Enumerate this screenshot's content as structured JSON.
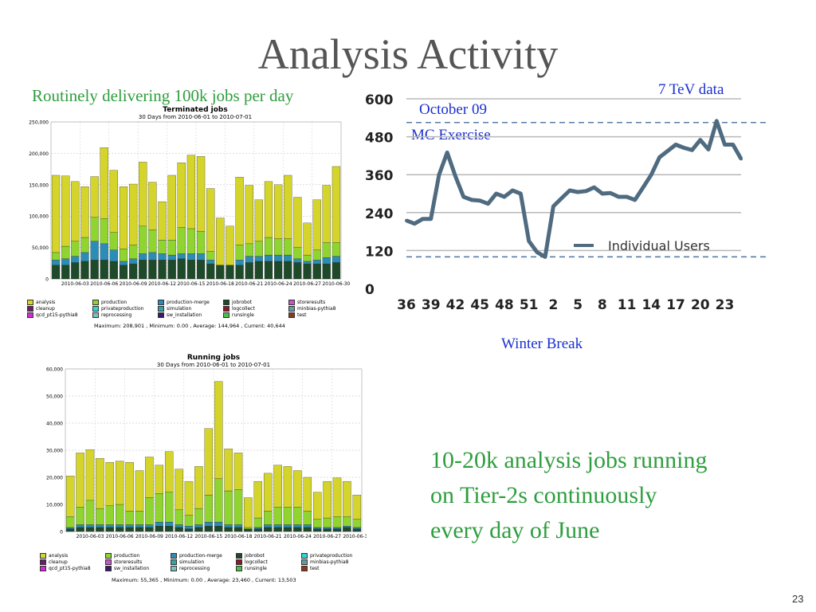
{
  "slide": {
    "title": "Analysis Activity",
    "subtitle_left": "Routinely delivering 100k jobs per day",
    "annotation_tev": "7 TeV data",
    "annotation_october": "October 09",
    "annotation_mc": "MC Exercise",
    "annotation_winter": "Winter Break",
    "callout_lines": [
      "10-20k analysis jobs running",
      "on Tier-2s continuously",
      "every day of June"
    ],
    "slide_number": "23"
  },
  "colors": {
    "title": "#555555",
    "green_text": "#2e9e3e",
    "blue_text": "#1a2fd0",
    "line_series": "#4f6b80"
  },
  "chart_data": [
    {
      "type": "bar",
      "stacked": true,
      "title": "Terminated jobs",
      "subtitle": "30 Days from 2010-06-01 to 2010-07-01",
      "ylim": [
        0,
        250000
      ],
      "yticks": [
        "0",
        "50,000",
        "100,000",
        "150,000",
        "200,000",
        "250,000"
      ],
      "ytick_values": [
        0,
        50000,
        100000,
        150000,
        200000,
        250000
      ],
      "xtick_labels": [
        "2010-06-03",
        "2010-06-06",
        "2010-06-09",
        "2010-06-12",
        "2010-06-15",
        "2010-06-18",
        "2010-06-21",
        "2010-06-24",
        "2010-06-27",
        "2010-06-30"
      ],
      "grid": true,
      "totals": [
        165000,
        164000,
        155000,
        147000,
        163000,
        209000,
        173000,
        147000,
        151000,
        186000,
        154000,
        123000,
        165000,
        185000,
        197000,
        195000,
        144000,
        97000,
        84000,
        162000,
        149000,
        126000,
        155000,
        150000,
        165000,
        130000,
        89000,
        126000,
        149000,
        179000
      ],
      "series": [
        {
          "name": "jobrobot",
          "color": "#1e4a2a",
          "values": [
            22000,
            22000,
            26000,
            28000,
            30000,
            30000,
            28000,
            22000,
            24000,
            30000,
            30000,
            30000,
            30000,
            32000,
            30000,
            30000,
            24000,
            22000,
            22000,
            22000,
            26000,
            28000,
            28000,
            28000,
            28000,
            26000,
            24000,
            24000,
            24000,
            26000
          ]
        },
        {
          "name": "production-merge",
          "color": "#2b8db5",
          "values": [
            8000,
            10000,
            10000,
            14000,
            30000,
            26000,
            18000,
            6000,
            8000,
            10000,
            12000,
            10000,
            8000,
            8000,
            10000,
            10000,
            6000,
            0,
            0,
            8000,
            10000,
            8000,
            10000,
            10000,
            10000,
            6000,
            4000,
            6000,
            10000,
            10000
          ]
        },
        {
          "name": "production",
          "color": "#8fd42f",
          "values": [
            12000,
            20000,
            24000,
            24000,
            38000,
            40000,
            28000,
            20000,
            22000,
            44000,
            36000,
            22000,
            24000,
            42000,
            40000,
            36000,
            14000,
            0,
            0,
            24000,
            20000,
            24000,
            28000,
            26000,
            26000,
            18000,
            10000,
            16000,
            24000,
            22000
          ]
        },
        {
          "name": "analysis",
          "color": "#d4d42a",
          "values": [
            123000,
            112000,
            95000,
            81000,
            65000,
            113000,
            99000,
            99000,
            97000,
            102000,
            76000,
            61000,
            103000,
            103000,
            117000,
            119000,
            100000,
            75000,
            62000,
            108000,
            93000,
            66000,
            89000,
            86000,
            101000,
            80000,
            51000,
            80000,
            91000,
            121000
          ]
        }
      ],
      "legend": [
        {
          "name": "analysis",
          "color": "#d4d42a"
        },
        {
          "name": "production",
          "color": "#8fd42f"
        },
        {
          "name": "production-merge",
          "color": "#2b8db5"
        },
        {
          "name": "jobrobot",
          "color": "#1e4a2a"
        },
        {
          "name": "storeresults",
          "color": "#c05ac0"
        },
        {
          "name": "cleanup",
          "color": "#6a1f6a"
        },
        {
          "name": "privateproduction",
          "color": "#2fd4d4"
        },
        {
          "name": "simulation",
          "color": "#3aa0a0"
        },
        {
          "name": "logcollect",
          "color": "#8a1a2a"
        },
        {
          "name": "minbias-pythia8",
          "color": "#6a9a9a"
        },
        {
          "name": "qcd_pt15-pythia8",
          "color": "#d42ad4"
        },
        {
          "name": "reprocessing",
          "color": "#7ac0c0"
        },
        {
          "name": "sw_installation",
          "color": "#3a1a6a"
        },
        {
          "name": "runsingle",
          "color": "#4ac04a"
        },
        {
          "name": "test",
          "color": "#8a3a1a"
        }
      ],
      "stats": "Maximum: 208,901 , Minimum: 0.00 , Average: 144,964 , Current: 40,644"
    },
    {
      "type": "line",
      "series": [
        {
          "name": "Individual Users",
          "values": [
            215,
            205,
            220,
            220,
            360,
            430,
            355,
            290,
            280,
            278,
            268,
            300,
            290,
            310,
            300,
            150,
            115,
            100,
            260,
            285,
            310,
            305,
            308,
            320,
            300,
            302,
            290,
            290,
            280,
            320,
            360,
            415,
            435,
            455,
            445,
            438,
            470,
            440,
            530,
            455,
            455,
            410
          ]
        }
      ],
      "xtick_labels": [
        "36",
        "39",
        "42",
        "45",
        "48",
        "51",
        "2",
        "5",
        "8",
        "11",
        "14",
        "17",
        "20",
        "23"
      ],
      "ylim": [
        0,
        600
      ],
      "yticks": [
        "0",
        "120",
        "240",
        "360",
        "480",
        "600"
      ],
      "ytick_values": [
        0,
        120,
        240,
        360,
        480,
        600
      ],
      "grid": true,
      "reference_lines": [
        {
          "value": 525,
          "style": "dashed"
        },
        {
          "value": 100,
          "style": "dashed"
        }
      ],
      "legend_label": "Individual Users"
    },
    {
      "type": "bar",
      "stacked": true,
      "title": "Running jobs",
      "subtitle": "30 Days from 2010-06-01 to 2010-07-01",
      "ylim": [
        0,
        60000
      ],
      "yticks": [
        "0",
        "10,000",
        "20,000",
        "30,000",
        "40,000",
        "50,000",
        "60,000"
      ],
      "ytick_values": [
        0,
        10000,
        20000,
        30000,
        40000,
        50000,
        60000
      ],
      "xtick_labels": [
        "2010-06-03",
        "2010-06-06",
        "2010-06-09",
        "2010-06-12",
        "2010-06-15",
        "2010-06-18",
        "2010-06-21",
        "2010-06-24",
        "2010-06-27",
        "2010-06-30"
      ],
      "grid": true,
      "totals": [
        20500,
        29000,
        30200,
        27000,
        25500,
        26000,
        25500,
        22500,
        27500,
        24500,
        29500,
        23000,
        18500,
        24000,
        38000,
        55365,
        30500,
        29000,
        12500,
        18500,
        21500,
        24500,
        24000,
        22500,
        20000,
        14500,
        18500,
        19800,
        18500,
        13500
      ],
      "series": [
        {
          "name": "jobrobot",
          "color": "#1e4a2a",
          "values": [
            1000,
            1500,
            1500,
            1500,
            1500,
            1500,
            1500,
            1500,
            1500,
            2000,
            2000,
            1500,
            1000,
            1500,
            2000,
            2000,
            1500,
            1500,
            1000,
            1000,
            1500,
            1500,
            1500,
            1500,
            1500,
            1000,
            1000,
            1000,
            1500,
            1000
          ]
        },
        {
          "name": "production-merge",
          "color": "#2b8db5",
          "values": [
            500,
            1000,
            1000,
            1000,
            1000,
            1000,
            1000,
            1000,
            1000,
            1500,
            1500,
            1000,
            1000,
            1000,
            1500,
            1500,
            1000,
            1000,
            0,
            500,
            1000,
            1000,
            1000,
            1000,
            1000,
            500,
            500,
            500,
            500,
            500
          ]
        },
        {
          "name": "production",
          "color": "#8fd42f",
          "values": [
            4000,
            6500,
            9000,
            6000,
            7000,
            7500,
            5000,
            5000,
            10000,
            10500,
            11000,
            5500,
            4000,
            6000,
            10000,
            16000,
            12500,
            13000,
            500,
            3500,
            5000,
            6500,
            6500,
            6500,
            5000,
            3000,
            3500,
            4000,
            3500,
            3000
          ]
        },
        {
          "name": "analysis",
          "color": "#d4d42a",
          "values": [
            15000,
            20000,
            18700,
            18500,
            16000,
            16000,
            18000,
            15000,
            15000,
            10500,
            15000,
            15000,
            12500,
            15500,
            24500,
            35865,
            15500,
            13500,
            11000,
            13500,
            14000,
            15500,
            15000,
            13500,
            12500,
            10000,
            13500,
            14300,
            13000,
            9000
          ]
        }
      ],
      "legend": [
        {
          "name": "analysis",
          "color": "#d4d42a"
        },
        {
          "name": "production",
          "color": "#8fd42f"
        },
        {
          "name": "production-merge",
          "color": "#2b8db5"
        },
        {
          "name": "jobrobot",
          "color": "#1e4a2a"
        },
        {
          "name": "privateproduction",
          "color": "#2fd4d4"
        },
        {
          "name": "cleanup",
          "color": "#6a1f6a"
        },
        {
          "name": "storeresults",
          "color": "#c05ac0"
        },
        {
          "name": "simulation",
          "color": "#3aa0a0"
        },
        {
          "name": "logcollect",
          "color": "#8a1a2a"
        },
        {
          "name": "minbias-pythia8",
          "color": "#6a9a9a"
        },
        {
          "name": "qcd_pt15-pythia8",
          "color": "#d42ad4"
        },
        {
          "name": "sw_installation",
          "color": "#3a1a6a"
        },
        {
          "name": "reprocessing",
          "color": "#7ac0c0"
        },
        {
          "name": "runsingle",
          "color": "#4ac04a"
        },
        {
          "name": "test",
          "color": "#8a3a1a"
        }
      ],
      "stats": "Maximum: 55,365 , Minimum: 0.00 , Average: 23,460 , Current: 13,503"
    }
  ]
}
